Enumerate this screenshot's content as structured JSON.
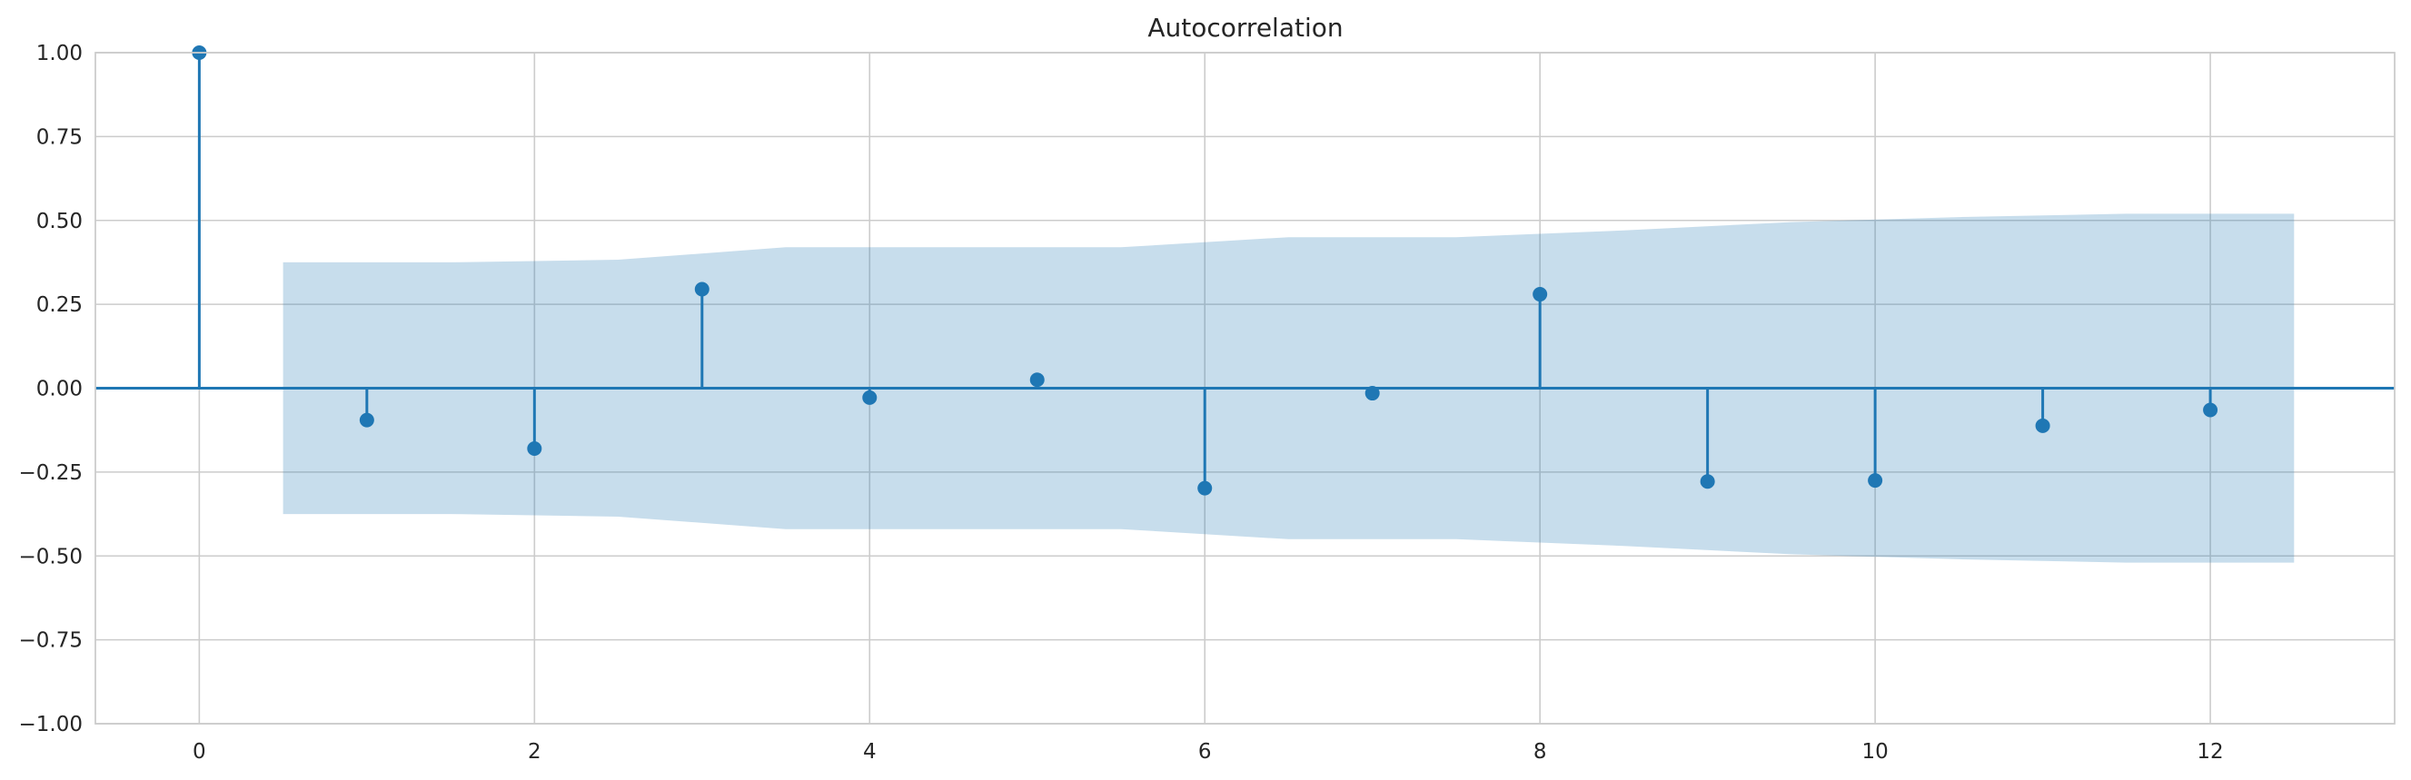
{
  "chart_data": {
    "type": "stem",
    "title": "Autocorrelation",
    "xlabel": "",
    "ylabel": "",
    "xlim": [
      -0.62,
      13.1
    ],
    "ylim": [
      -1.0,
      1.0
    ],
    "x_ticks": [
      0,
      2,
      4,
      6,
      8,
      10,
      12
    ],
    "x_tick_labels": [
      "0",
      "2",
      "4",
      "6",
      "8",
      "10",
      "12"
    ],
    "y_ticks": [
      1.0,
      0.75,
      0.5,
      0.25,
      0.0,
      -0.25,
      -0.5,
      -0.75,
      -1.0
    ],
    "y_tick_labels": [
      "1.00",
      "0.75",
      "0.50",
      "0.25",
      "0.00",
      "−0.25",
      "−0.50",
      "−0.75",
      "−1.00"
    ],
    "grid": true,
    "series": [
      {
        "lags": [
          0,
          1,
          2,
          3,
          4,
          5,
          6,
          7,
          8,
          9,
          10,
          11,
          12
        ],
        "values": [
          1.0,
          -0.095,
          -0.18,
          0.295,
          -0.028,
          0.025,
          -0.298,
          -0.015,
          0.28,
          -0.278,
          -0.275,
          -0.112,
          -0.065
        ],
        "color": "#1f77b4"
      }
    ],
    "confidence_band": {
      "x": [
        0.5,
        1.5,
        2.5,
        3.5,
        4.5,
        5.5,
        6.5,
        7.5,
        8.5,
        9.5,
        10.5,
        11.5,
        12.5
      ],
      "upper": [
        0.375,
        0.375,
        0.383,
        0.42,
        0.42,
        0.42,
        0.45,
        0.45,
        0.47,
        0.495,
        0.51,
        0.52,
        0.52
      ],
      "color": "#1f77b4",
      "opacity": 0.25
    }
  }
}
